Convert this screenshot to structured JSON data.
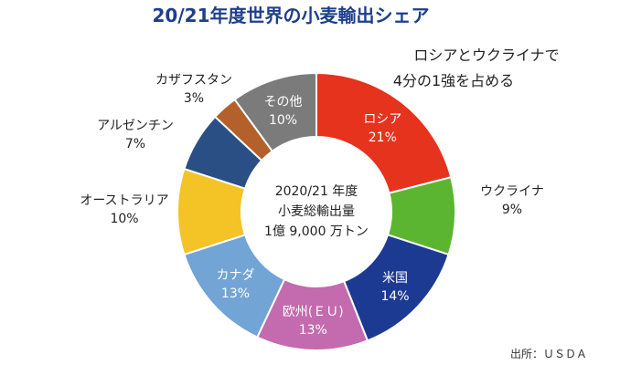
{
  "chart_data": {
    "type": "pie",
    "title": "20/21年度世界の小麦輸出シェア",
    "center_label": [
      "2020/21 年度",
      "小麦総輸出量",
      "1億 9,000 万トン"
    ],
    "annotation": [
      "ロシアとウクライナで",
      "4分の1強を占める"
    ],
    "source": "出所：ＵＳＤＡ",
    "slices": [
      {
        "name": "ロシア",
        "value": 21,
        "label": "21%",
        "color": "#e6331e"
      },
      {
        "name": "ウクライナ",
        "value": 9,
        "label": "9%",
        "color": "#5cb531"
      },
      {
        "name": "米国",
        "value": 14,
        "label": "14%",
        "color": "#1d3a93"
      },
      {
        "name": "欧州(ＥＵ)",
        "value": 13,
        "label": "13%",
        "color": "#c46aae"
      },
      {
        "name": "カナダ",
        "value": 13,
        "label": "13%",
        "color": "#72a4d6"
      },
      {
        "name": "オーストラリア",
        "value": 10,
        "label": "10%",
        "color": "#f4c326"
      },
      {
        "name": "アルゼンチン",
        "value": 7,
        "label": "7%",
        "color": "#2a4f85"
      },
      {
        "name": "カザフスタン",
        "value": 3,
        "label": "3%",
        "color": "#b4602b"
      },
      {
        "name": "その他",
        "value": 10,
        "label": "10%",
        "color": "#7b7b7b"
      }
    ]
  }
}
